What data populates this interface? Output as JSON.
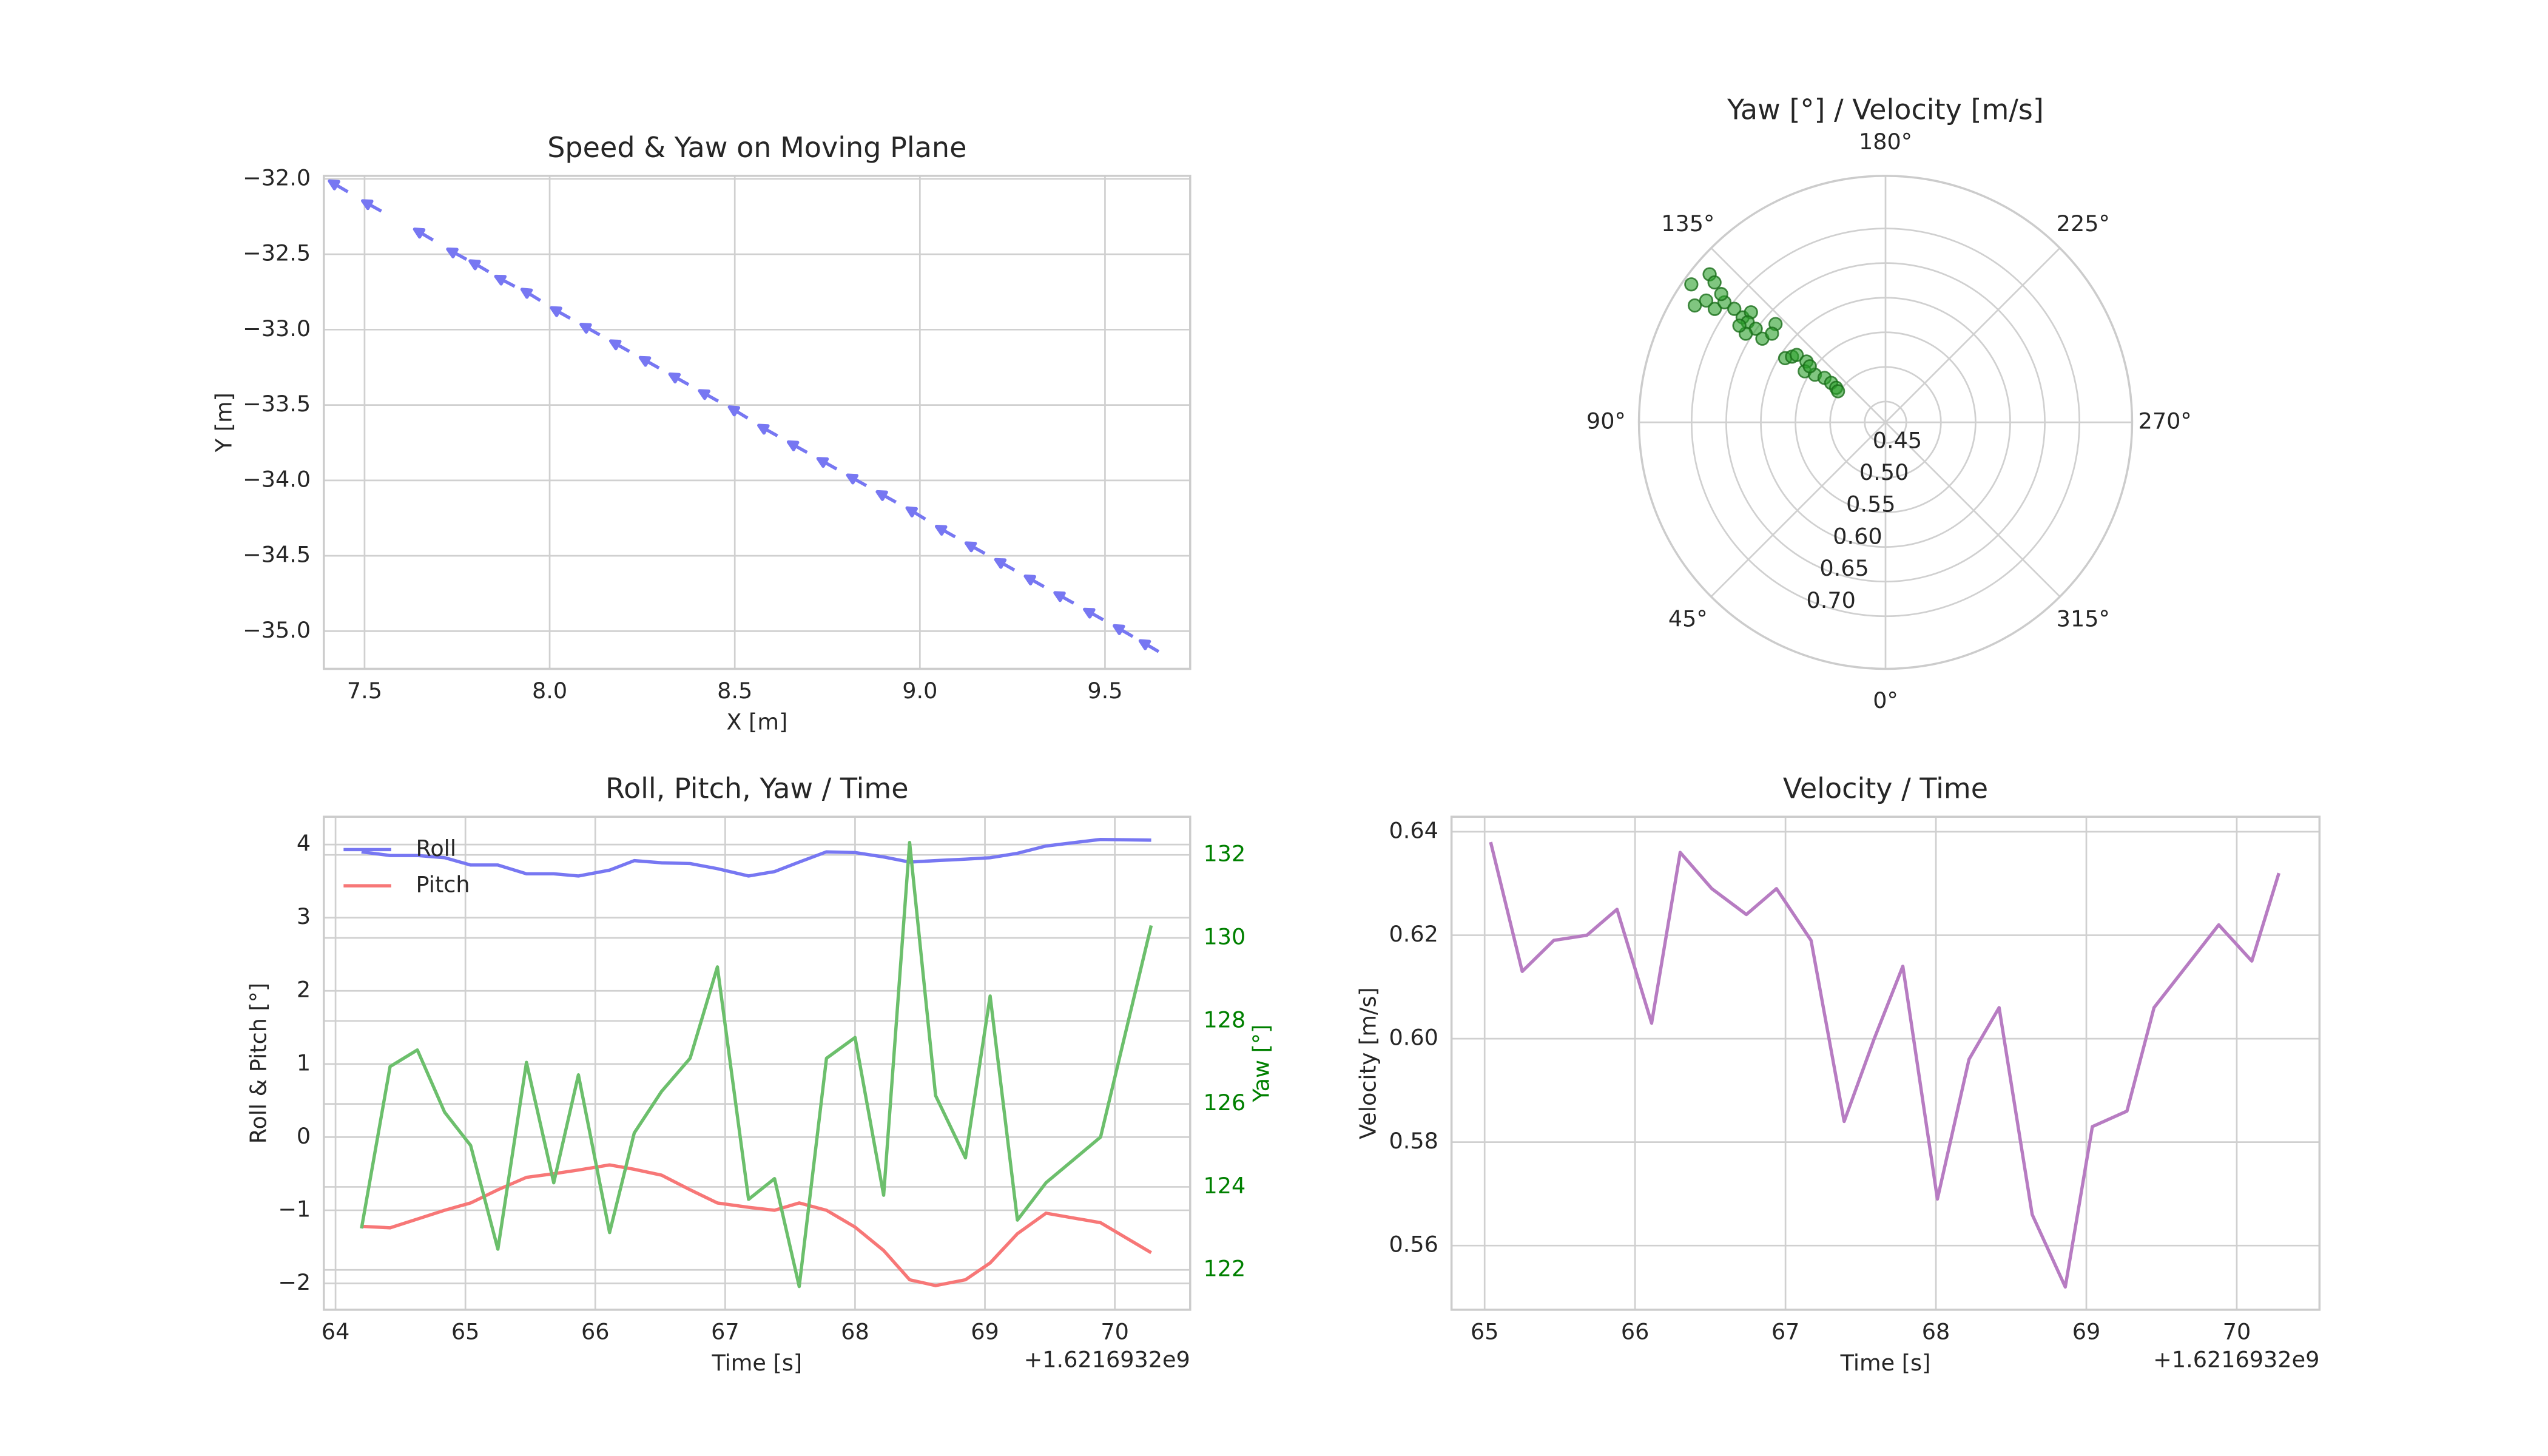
{
  "chart_data": [
    {
      "type": "quiver",
      "title": "Speed & Yaw on Moving Plane",
      "xlabel": "X [m]",
      "ylabel": "Y [m]",
      "x": [
        7.43,
        7.52,
        7.66,
        7.75,
        7.81,
        7.88,
        7.95,
        8.03,
        8.11,
        8.19,
        8.27,
        8.35,
        8.43,
        8.51,
        8.59,
        8.67,
        8.75,
        8.83,
        8.91,
        8.99,
        9.07,
        9.15,
        9.23,
        9.31,
        9.39,
        9.47,
        9.55,
        9.62
      ],
      "y": [
        -32.05,
        -32.18,
        -32.37,
        -32.5,
        -32.58,
        -32.68,
        -32.77,
        -32.89,
        -33.0,
        -33.11,
        -33.22,
        -33.33,
        -33.44,
        -33.55,
        -33.67,
        -33.78,
        -33.89,
        -34.0,
        -34.11,
        -34.22,
        -34.34,
        -34.45,
        -34.56,
        -34.67,
        -34.78,
        -34.89,
        -35.0,
        -35.1
      ],
      "color": "#7777f2",
      "xlim": [
        7.39,
        9.73
      ],
      "ylim": [
        -35.25,
        -31.98
      ],
      "xticks": [
        7.5,
        {
          "value": 8,
          "label": "8.0"
        },
        8.5,
        {
          "value": 9,
          "label": "9.0"
        },
        9.5
      ],
      "yticks": [
        {
          "value": -32,
          "label": "−32.0"
        },
        {
          "value": -32.5,
          "label": "−32.5"
        },
        {
          "value": -33,
          "label": "−33.0"
        },
        {
          "value": -33.5,
          "label": "−33.5"
        },
        {
          "value": -34,
          "label": "−34.0"
        },
        {
          "value": -34.5,
          "label": "−34.5"
        },
        {
          "value": -35,
          "label": "−35.0"
        }
      ],
      "grid": true
    },
    {
      "type": "polar",
      "title": "Yaw [°] / Velocity [m/s]",
      "theta": [
        125.4,
        130.1,
        129.3,
        121.5,
        124.2,
        123.6,
        126.7,
        126.9,
        126.3,
        129.3,
        126.0,
        125.8,
        124.2,
        122.4,
        131.8,
        128.0,
        122.6,
        125.1,
        127.2,
        127.6,
        122.3,
        124.0,
        126.1,
        126.0,
        125.0,
        123.2,
        126.5,
        123.5,
        128.0
      ],
      "r": [
        0.764,
        0.752,
        0.739,
        0.743,
        0.733,
        0.716,
        0.71,
        0.693,
        0.676,
        0.671,
        0.666,
        0.651,
        0.635,
        0.659,
        0.633,
        0.628,
        0.592,
        0.585,
        0.581,
        0.564,
        0.558,
        0.543,
        0.529,
        0.517,
        0.507,
        0.502,
        0.556,
        0.673,
        0.721
      ],
      "color": "#2ca02c",
      "theta_zero": "S",
      "theta_direction": "clockwise",
      "theta_ticks": [
        {
          "value": 0,
          "label": "0°"
        },
        {
          "value": 45,
          "label": "45°"
        },
        {
          "value": 90,
          "label": "90°"
        },
        {
          "value": 135,
          "label": "135°"
        },
        {
          "value": 180,
          "label": "180°"
        },
        {
          "value": 225,
          "label": "225°"
        },
        {
          "value": 270,
          "label": "270°"
        },
        {
          "value": 315,
          "label": "315°"
        }
      ],
      "rlim": [
        0.42,
        0.776
      ],
      "rticks": [
        0.45,
        {
          "value": 0.5,
          "label": "0.50"
        },
        0.55,
        {
          "value": 0.6,
          "label": "0.60"
        },
        0.65,
        {
          "value": 0.7,
          "label": "0.70"
        }
      ],
      "grid": true
    },
    {
      "type": "line",
      "title": "Roll, Pitch, Yaw / Time",
      "xlabel": "Time [s]",
      "ylabel": "Roll & Pitch [°]",
      "y2label": "Yaw [°]",
      "x_offset_label": "+1.6216932e9",
      "x": [
        64.2,
        64.42,
        64.63,
        64.84,
        65.04,
        65.25,
        65.47,
        65.68,
        65.87,
        66.11,
        66.3,
        66.51,
        66.73,
        66.94,
        67.18,
        67.38,
        67.57,
        67.78,
        68.0,
        68.22,
        68.42,
        68.62,
        68.85,
        69.04,
        69.25,
        69.47,
        69.89,
        70.28
      ],
      "series": [
        {
          "name": "Roll",
          "color": "#7777f2",
          "values": [
            3.9,
            3.85,
            3.85,
            3.82,
            3.72,
            3.72,
            3.6,
            3.6,
            3.57,
            3.65,
            3.78,
            3.75,
            3.74,
            3.67,
            3.57,
            3.63,
            3.76,
            3.9,
            3.89,
            3.83,
            3.76,
            3.78,
            3.8,
            3.82,
            3.88,
            3.98,
            4.07,
            4.06
          ]
        },
        {
          "name": "Pitch",
          "color": "#f77777",
          "values": [
            -1.22,
            -1.24,
            -1.12,
            -1.0,
            -0.9,
            -0.72,
            -0.55,
            -0.5,
            -0.45,
            -0.38,
            -0.44,
            -0.52,
            -0.72,
            -0.9,
            -0.96,
            -1.0,
            -0.9,
            -1.0,
            -1.23,
            -1.55,
            -1.95,
            -2.03,
            -1.95,
            -1.72,
            -1.32,
            -1.04,
            -1.17,
            -1.58
          ]
        },
        {
          "color": "#6cbf6c",
          "axis": "y2",
          "values": [
            123.0,
            126.9,
            127.3,
            125.8,
            125.0,
            122.5,
            127.0,
            124.1,
            126.7,
            122.9,
            125.3,
            126.3,
            127.1,
            129.3,
            123.7,
            124.2,
            121.6,
            127.1,
            127.6,
            123.8,
            132.3,
            126.2,
            124.7,
            128.6,
            123.2,
            124.1,
            125.2,
            130.3
          ]
        }
      ],
      "xlim": [
        63.91,
        70.58
      ],
      "ylim": [
        -2.36,
        4.38
      ],
      "y2lim": [
        121.04,
        132.92
      ],
      "xticks": [
        64,
        65,
        66,
        67,
        68,
        69,
        70
      ],
      "yticks": [
        {
          "value": -2,
          "label": "−2"
        },
        {
          "value": -1,
          "label": "−1"
        },
        0,
        1,
        2,
        3,
        4
      ],
      "y2ticks": [
        122,
        124,
        126,
        128,
        130,
        132
      ],
      "y2_color": "#008000",
      "legend": "upper left",
      "grid": true
    },
    {
      "type": "line",
      "title": "Velocity / Time",
      "xlabel": "Time [s]",
      "ylabel": "Velocity [m/s]",
      "x_offset_label": "+1.6216932e9",
      "x": [
        65.04,
        65.25,
        65.46,
        65.68,
        65.88,
        66.11,
        66.3,
        66.51,
        66.74,
        66.94,
        67.17,
        67.39,
        67.59,
        67.78,
        68.01,
        68.22,
        68.42,
        68.64,
        68.86,
        69.04,
        69.27,
        69.45,
        69.88,
        70.1,
        70.28
      ],
      "series": [
        {
          "color": "#b77cc2",
          "values": [
            0.638,
            0.613,
            0.619,
            0.62,
            0.625,
            0.603,
            0.636,
            0.629,
            0.624,
            0.629,
            0.619,
            0.584,
            0.6,
            0.614,
            0.569,
            0.596,
            0.606,
            0.566,
            0.552,
            0.583,
            0.586,
            0.606,
            0.622,
            0.615,
            0.632
          ]
        }
      ],
      "xlim": [
        64.78,
        70.55
      ],
      "ylim": [
        0.5476,
        0.6429
      ],
      "xticks": [
        65,
        66,
        67,
        68,
        69,
        70
      ],
      "yticks": [
        0.56,
        0.58,
        {
          "value": 0.6,
          "label": "0.60"
        },
        0.62,
        0.64
      ],
      "grid": true
    }
  ]
}
